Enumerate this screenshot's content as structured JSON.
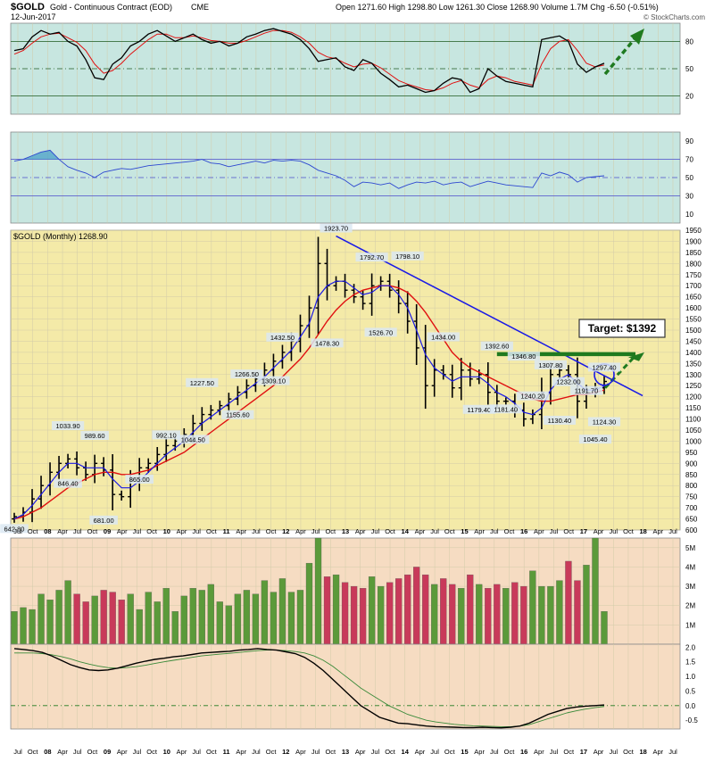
{
  "header": {
    "symbol": "$GOLD",
    "name": "Gold - Continuous Contract (EOD)",
    "exchange": "CME",
    "date": "12-Jun-2017",
    "ohlc": "Open 1271.60  High 1298.80  Low 1261.30  Close 1268.90  Volume 1.7M  Chg -6.50 (-0.51%)",
    "watermark": "© StockCharts.com"
  },
  "colors": {
    "rsi_bg": "#c7e6e0",
    "main_bg": "#f4eaa8",
    "vol_bg": "#f6dcc2",
    "macd_bg": "#f6dcc2",
    "grid": "#d2cba9",
    "bar": "#000000",
    "ma_fast": "#1a1ae6",
    "ma_slow": "#e01010",
    "trend": "#1a1ae6",
    "target": "#1f7a1f",
    "vol_up": "#5b9a3a",
    "vol_down": "#c83a5a"
  },
  "target_label": "Target: $1392",
  "chart_data": [
    {
      "panel": "stoch",
      "type": "line",
      "ylim": [
        0,
        100
      ],
      "ticks": [
        "80",
        "50",
        "20"
      ],
      "tick_values": [
        80,
        50,
        20
      ],
      "levels": [
        80,
        50,
        20
      ],
      "series": [
        {
          "values": [
            70,
            72,
            85,
            92,
            88,
            90,
            80,
            75,
            60,
            40,
            38,
            55,
            62,
            75,
            80,
            88,
            92,
            86,
            80,
            84,
            88,
            82,
            78,
            80,
            75,
            78,
            85,
            88,
            92,
            94,
            91,
            88,
            82,
            72,
            58,
            60,
            62,
            52,
            48,
            60,
            56,
            45,
            38,
            30,
            32,
            28,
            24,
            26,
            34,
            40,
            38,
            24,
            28,
            50,
            42,
            36,
            34,
            32,
            30,
            82,
            84,
            86,
            80,
            55,
            46,
            52,
            56
          ]
        },
        {
          "values": [
            66,
            70,
            78,
            85,
            88,
            89,
            84,
            79,
            70,
            55,
            45,
            48,
            56,
            66,
            74,
            82,
            88,
            88,
            84,
            84,
            86,
            84,
            81,
            80,
            78,
            78,
            81,
            85,
            89,
            92,
            92,
            90,
            85,
            78,
            68,
            63,
            61,
            56,
            52,
            55,
            56,
            51,
            44,
            37,
            33,
            30,
            27,
            26,
            29,
            34,
            37,
            32,
            29,
            38,
            42,
            40,
            36,
            34,
            32,
            55,
            72,
            80,
            82,
            70,
            56,
            52,
            54
          ]
        }
      ]
    },
    {
      "panel": "rsi",
      "type": "line",
      "ylim": [
        0,
        100
      ],
      "ticks": [
        "90",
        "70",
        "50",
        "30",
        "10"
      ],
      "tick_values": [
        90,
        70,
        50,
        30,
        10
      ],
      "levels": [
        70,
        50,
        30
      ],
      "overbought": 70,
      "values": [
        68,
        70,
        74,
        78,
        80,
        70,
        62,
        58,
        55,
        50,
        56,
        58,
        60,
        59,
        61,
        63,
        64,
        65,
        66,
        67,
        68,
        70,
        66,
        65,
        62,
        64,
        66,
        68,
        66,
        69,
        68,
        69,
        68,
        64,
        58,
        55,
        52,
        47,
        40,
        45,
        44,
        42,
        44,
        38,
        42,
        45,
        44,
        46,
        42,
        44,
        45,
        40,
        43,
        46,
        44,
        42,
        41,
        40,
        39,
        55,
        52,
        56,
        53,
        45,
        50,
        51,
        52
      ]
    },
    {
      "panel": "price",
      "title": "$GOLD (Monthly) 1268.90",
      "type": "ohlc",
      "ylim": [
        600,
        1950
      ],
      "ticks": [
        "1950",
        "1900",
        "1850",
        "1800",
        "1750",
        "1700",
        "1650",
        "1600",
        "1550",
        "1500",
        "1450",
        "1400",
        "1350",
        "1300",
        "1250",
        "1200",
        "1150",
        "1100",
        "1050",
        "1000",
        "950",
        "900",
        "850",
        "800",
        "750",
        "700",
        "650",
        "600"
      ],
      "tick_values": [
        1950,
        1900,
        1850,
        1800,
        1750,
        1700,
        1650,
        1600,
        1550,
        1500,
        1450,
        1400,
        1350,
        1300,
        1250,
        1200,
        1150,
        1100,
        1050,
        1000,
        950,
        900,
        850,
        800,
        750,
        700,
        650,
        600
      ],
      "close": [
        660,
        680,
        740,
        800,
        860,
        900,
        920,
        880,
        850,
        900,
        870,
        760,
        750,
        820,
        880,
        900,
        940,
        980,
        1000,
        1030,
        1080,
        1120,
        1140,
        1160,
        1190,
        1220,
        1250,
        1280,
        1320,
        1360,
        1400,
        1450,
        1520,
        1600,
        1800,
        1700,
        1720,
        1680,
        1650,
        1620,
        1700,
        1720,
        1680,
        1620,
        1540,
        1420,
        1250,
        1320,
        1300,
        1240,
        1320,
        1280,
        1300,
        1220,
        1180,
        1180,
        1140,
        1100,
        1120,
        1220,
        1300,
        1320,
        1300,
        1180,
        1220,
        1240,
        1268.9
      ],
      "ma_fast": [
        650,
        670,
        710,
        760,
        810,
        860,
        900,
        900,
        880,
        880,
        880,
        830,
        790,
        790,
        820,
        860,
        900,
        940,
        970,
        1000,
        1040,
        1080,
        1110,
        1140,
        1170,
        1200,
        1230,
        1260,
        1290,
        1330,
        1370,
        1410,
        1470,
        1530,
        1650,
        1700,
        1720,
        1720,
        1690,
        1660,
        1670,
        1700,
        1700,
        1660,
        1600,
        1500,
        1390,
        1330,
        1300,
        1270,
        1290,
        1290,
        1290,
        1260,
        1220,
        1200,
        1170,
        1130,
        1120,
        1150,
        1230,
        1280,
        1300,
        1260,
        1230,
        1230,
        1250
      ],
      "ma_slow": [
        650,
        660,
        680,
        700,
        730,
        760,
        790,
        810,
        830,
        850,
        860,
        860,
        850,
        850,
        860,
        870,
        890,
        910,
        930,
        950,
        980,
        1010,
        1040,
        1070,
        1100,
        1130,
        1160,
        1190,
        1220,
        1250,
        1290,
        1330,
        1370,
        1420,
        1480,
        1540,
        1590,
        1630,
        1660,
        1680,
        1690,
        1700,
        1700,
        1690,
        1670,
        1630,
        1580,
        1520,
        1460,
        1400,
        1360,
        1330,
        1310,
        1290,
        1270,
        1250,
        1230,
        1210,
        1190,
        1180,
        1180,
        1190,
        1200,
        1210,
        1210,
        1220,
        1230
      ],
      "annotations": [
        {
          "i": 0,
          "v": 642.8,
          "t": "642.80",
          "side": "below"
        },
        {
          "i": 6,
          "v": 1033.9,
          "t": "1033.90",
          "side": "above"
        },
        {
          "i": 6,
          "v": 846.4,
          "t": "846.40",
          "side": "below"
        },
        {
          "i": 9,
          "v": 989.6,
          "t": "989.60",
          "side": "above"
        },
        {
          "i": 10,
          "v": 681.0,
          "t": "681.00",
          "side": "below"
        },
        {
          "i": 14,
          "v": 865.0,
          "t": "865.00",
          "side": "below"
        },
        {
          "i": 17,
          "v": 992.1,
          "t": "992.10",
          "side": "above"
        },
        {
          "i": 20,
          "v": 1044.5,
          "t": "1044.50",
          "side": "below"
        },
        {
          "i": 21,
          "v": 1227.5,
          "t": "1227.50",
          "side": "above"
        },
        {
          "i": 25,
          "v": 1155.6,
          "t": "1155.60",
          "side": "below"
        },
        {
          "i": 26,
          "v": 1266.5,
          "t": "1266.50",
          "side": "above"
        },
        {
          "i": 29,
          "v": 1309.1,
          "t": "1309.10",
          "side": "below"
        },
        {
          "i": 30,
          "v": 1432.5,
          "t": "1432.50",
          "side": "above"
        },
        {
          "i": 35,
          "v": 1478.3,
          "t": "1478.30",
          "side": "below"
        },
        {
          "i": 36,
          "v": 1923.7,
          "t": "1923.70",
          "side": "above"
        },
        {
          "i": 40,
          "v": 1792.7,
          "t": "1792.70",
          "side": "above"
        },
        {
          "i": 41,
          "v": 1526.7,
          "t": "1526.70",
          "side": "below"
        },
        {
          "i": 44,
          "v": 1798.1,
          "t": "1798.10",
          "side": "above"
        },
        {
          "i": 48,
          "v": 1434.0,
          "t": "1434.00",
          "side": "above"
        },
        {
          "i": 52,
          "v": 1179.4,
          "t": "1179.40",
          "side": "below"
        },
        {
          "i": 54,
          "v": 1392.6,
          "t": "1392.60",
          "side": "above"
        },
        {
          "i": 55,
          "v": 1181.4,
          "t": "1181.40",
          "side": "below"
        },
        {
          "i": 57,
          "v": 1346.8,
          "t": "1346.80",
          "side": "above"
        },
        {
          "i": 58,
          "v": 1240.2,
          "t": "1240.20",
          "side": "below"
        },
        {
          "i": 60,
          "v": 1307.8,
          "t": "1307.80",
          "side": "above"
        },
        {
          "i": 61,
          "v": 1130.4,
          "t": "1130.40",
          "side": "below"
        },
        {
          "i": 62,
          "v": 1232.0,
          "t": "1232.00",
          "side": "above"
        },
        {
          "i": 64,
          "v": 1191.7,
          "t": "1191.70",
          "side": "above"
        },
        {
          "i": 65,
          "v": 1045.4,
          "t": "1045.40",
          "side": "below"
        },
        {
          "i": 66,
          "v": 1124.3,
          "t": "1124.30",
          "side": "below"
        },
        {
          "i": 66,
          "v": 1297.4,
          "t": "1297.40",
          "side": "above"
        }
      ]
    },
    {
      "panel": "volume",
      "type": "bar",
      "ylim": [
        0,
        5.5
      ],
      "ticks": [
        "5M",
        "4M",
        "3M",
        "2M",
        "1M"
      ],
      "tick_values": [
        5,
        4,
        3,
        2,
        1
      ],
      "values": [
        1.7,
        1.9,
        1.8,
        2.6,
        2.3,
        2.8,
        3.3,
        2.6,
        2.2,
        2.5,
        2.8,
        2.7,
        2.3,
        2.6,
        1.8,
        2.7,
        2.2,
        2.9,
        1.7,
        2.5,
        2.9,
        2.8,
        3.1,
        2.2,
        2.0,
        2.6,
        2.8,
        2.6,
        3.3,
        2.7,
        3.4,
        2.7,
        2.8,
        4.2,
        5.7,
        3.5,
        3.6,
        3.2,
        3.0,
        2.9,
        3.5,
        3.0,
        3.2,
        3.4,
        3.6,
        4.0,
        3.6,
        3.1,
        3.4,
        3.1,
        2.9,
        3.6,
        3.1,
        2.9,
        3.1,
        2.9,
        3.2,
        3.0,
        3.8,
        3.0,
        3.0,
        3.3,
        4.3,
        3.3,
        4.1,
        5.6,
        1.7
      ]
    },
    {
      "panel": "macd",
      "type": "line",
      "ylim": [
        -0.8,
        2.1
      ],
      "ticks": [
        "2.0",
        "1.5",
        "1.0",
        "0.5",
        "0.0",
        "-0.5"
      ],
      "tick_values": [
        2.0,
        1.5,
        1.0,
        0.5,
        0.0,
        -0.5
      ],
      "zero": 0.0,
      "series": [
        {
          "values": [
            1.95,
            1.92,
            1.88,
            1.82,
            1.7,
            1.55,
            1.4,
            1.3,
            1.22,
            1.2,
            1.22,
            1.28,
            1.36,
            1.45,
            1.52,
            1.58,
            1.62,
            1.67,
            1.7,
            1.75,
            1.8,
            1.82,
            1.84,
            1.86,
            1.9,
            1.92,
            1.95,
            1.92,
            1.9,
            1.84,
            1.78,
            1.65,
            1.45,
            1.2,
            0.9,
            0.6,
            0.3,
            0.0,
            -0.2,
            -0.4,
            -0.5,
            -0.6,
            -0.62,
            -0.66,
            -0.7,
            -0.72,
            -0.73,
            -0.74,
            -0.75,
            -0.75,
            -0.74,
            -0.75,
            -0.76,
            -0.74,
            -0.7,
            -0.6,
            -0.45,
            -0.3,
            -0.2,
            -0.1,
            -0.05,
            -0.02,
            0.0,
            0.02
          ]
        },
        {
          "values": [
            1.8,
            1.8,
            1.8,
            1.78,
            1.74,
            1.68,
            1.6,
            1.5,
            1.42,
            1.35,
            1.3,
            1.28,
            1.3,
            1.33,
            1.38,
            1.44,
            1.5,
            1.55,
            1.6,
            1.65,
            1.7,
            1.73,
            1.76,
            1.79,
            1.82,
            1.85,
            1.88,
            1.9,
            1.9,
            1.88,
            1.85,
            1.8,
            1.7,
            1.55,
            1.35,
            1.1,
            0.85,
            0.6,
            0.4,
            0.2,
            0.0,
            -0.15,
            -0.3,
            -0.4,
            -0.5,
            -0.56,
            -0.6,
            -0.64,
            -0.67,
            -0.69,
            -0.7,
            -0.71,
            -0.72,
            -0.72,
            -0.7,
            -0.65,
            -0.55,
            -0.45,
            -0.35,
            -0.25,
            -0.18,
            -0.12,
            -0.07,
            -0.03
          ]
        }
      ]
    }
  ],
  "xaxis": {
    "labels": [
      "Jul",
      "Oct",
      "08",
      "Apr",
      "Jul",
      "Oct",
      "09",
      "Apr",
      "Jul",
      "Oct",
      "10",
      "Apr",
      "Jul",
      "Oct",
      "11",
      "Apr",
      "Jul",
      "Oct",
      "12",
      "Apr",
      "Jul",
      "Oct",
      "13",
      "Apr",
      "Jul",
      "Oct",
      "14",
      "Apr",
      "Jul",
      "Oct",
      "15",
      "Apr",
      "Jul",
      "Oct",
      "16",
      "Apr",
      "Jul",
      "Oct",
      "17",
      "Apr",
      "Jul",
      "Oct",
      "18",
      "Apr",
      "Jul"
    ]
  }
}
